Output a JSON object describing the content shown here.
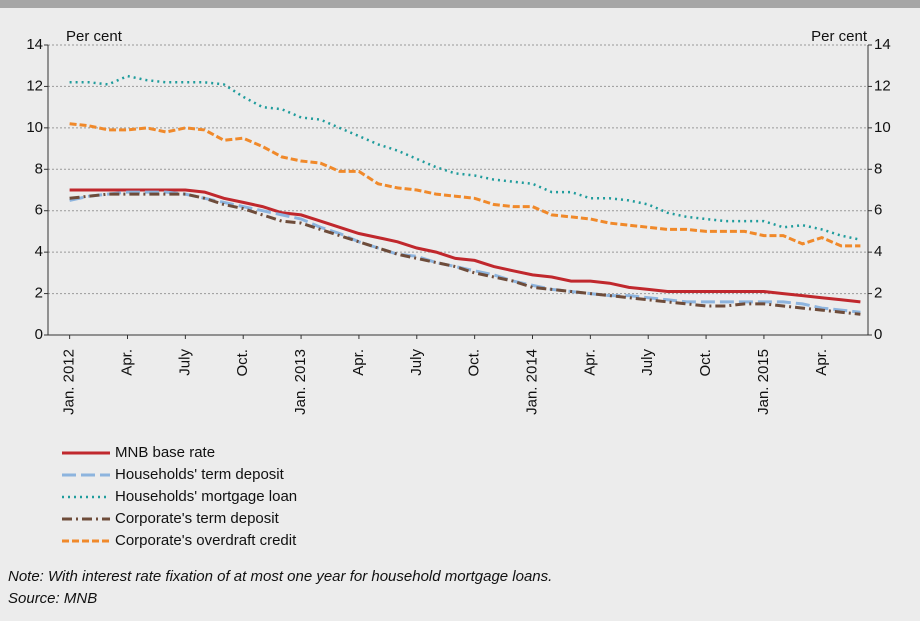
{
  "chart_data": {
    "type": "line",
    "y_label_left": "Per cent",
    "y_label_right": "Per cent",
    "categories": [
      "Jan. 2012",
      null,
      null,
      "Apr.",
      null,
      null,
      "July",
      null,
      null,
      "Oct.",
      null,
      null,
      "Jan. 2013",
      null,
      null,
      "Apr.",
      null,
      null,
      "July",
      null,
      null,
      "Oct.",
      null,
      null,
      "Jan. 2014",
      null,
      null,
      "Apr.",
      null,
      null,
      "July",
      null,
      null,
      "Oct.",
      null,
      null,
      "Jan. 2015",
      null,
      null,
      "Apr.",
      null,
      null
    ],
    "series": [
      {
        "name": "MNB base rate",
        "color": "#c0282d",
        "values": [
          7.0,
          7.0,
          7.0,
          7.0,
          7.0,
          7.0,
          7.0,
          6.9,
          6.6,
          6.4,
          6.2,
          5.9,
          5.8,
          5.5,
          5.2,
          4.9,
          4.7,
          4.5,
          4.2,
          4.0,
          3.7,
          3.6,
          3.3,
          3.1,
          2.9,
          2.8,
          2.6,
          2.6,
          2.5,
          2.3,
          2.2,
          2.1,
          2.1,
          2.1,
          2.1,
          2.1,
          2.1,
          2.0,
          1.9,
          1.8,
          1.7,
          1.6
        ]
      },
      {
        "name": "Households' term deposit",
        "color": "#8db4de",
        "values": [
          6.5,
          6.7,
          6.8,
          6.9,
          6.9,
          6.9,
          6.8,
          6.6,
          6.4,
          6.2,
          6.0,
          5.8,
          5.6,
          5.2,
          4.9,
          4.5,
          4.2,
          3.9,
          3.8,
          3.5,
          3.3,
          3.1,
          2.9,
          2.6,
          2.4,
          2.2,
          2.1,
          2.0,
          1.9,
          1.9,
          1.8,
          1.7,
          1.6,
          1.6,
          1.6,
          1.6,
          1.6,
          1.6,
          1.5,
          1.3,
          1.2,
          1.1
        ]
      },
      {
        "name": "Households' mortgage loan",
        "color": "#1f9c9c",
        "values": [
          12.2,
          12.2,
          12.1,
          12.5,
          12.3,
          12.2,
          12.2,
          12.2,
          12.1,
          11.5,
          11.0,
          10.9,
          10.5,
          10.4,
          10.0,
          9.6,
          9.2,
          8.9,
          8.5,
          8.1,
          7.8,
          7.7,
          7.5,
          7.4,
          7.3,
          6.9,
          6.9,
          6.6,
          6.6,
          6.5,
          6.3,
          5.9,
          5.7,
          5.6,
          5.5,
          5.5,
          5.5,
          5.2,
          5.3,
          5.1,
          4.8,
          4.6
        ]
      },
      {
        "name": "Corporate's term deposit",
        "color": "#6e4c3a",
        "values": [
          6.6,
          6.7,
          6.8,
          6.8,
          6.8,
          6.8,
          6.8,
          6.6,
          6.3,
          6.1,
          5.8,
          5.5,
          5.4,
          5.1,
          4.8,
          4.5,
          4.2,
          3.9,
          3.7,
          3.5,
          3.3,
          3.0,
          2.8,
          2.6,
          2.3,
          2.2,
          2.1,
          2.0,
          1.9,
          1.8,
          1.7,
          1.6,
          1.5,
          1.4,
          1.4,
          1.5,
          1.5,
          1.4,
          1.3,
          1.2,
          1.1,
          1.0
        ]
      },
      {
        "name": "Corporate's overdraft credit",
        "color": "#f0892a",
        "values": [
          10.2,
          10.1,
          9.9,
          9.9,
          10.0,
          9.8,
          10.0,
          9.9,
          9.4,
          9.5,
          9.1,
          8.6,
          8.4,
          8.3,
          7.9,
          7.9,
          7.3,
          7.1,
          7.0,
          6.8,
          6.7,
          6.6,
          6.3,
          6.2,
          6.2,
          5.8,
          5.7,
          5.6,
          5.4,
          5.3,
          5.2,
          5.1,
          5.1,
          5.0,
          5.0,
          5.0,
          4.8,
          4.8,
          4.4,
          4.7,
          4.3,
          4.3
        ]
      }
    ],
    "ylim": [
      0,
      14
    ],
    "yticks": [
      0,
      2,
      4,
      6,
      8,
      10,
      12,
      14
    ],
    "grid": true,
    "note": "Note: With interest rate fixation of at most one year for household mortgage loans.",
    "source": "Source: MNB"
  }
}
